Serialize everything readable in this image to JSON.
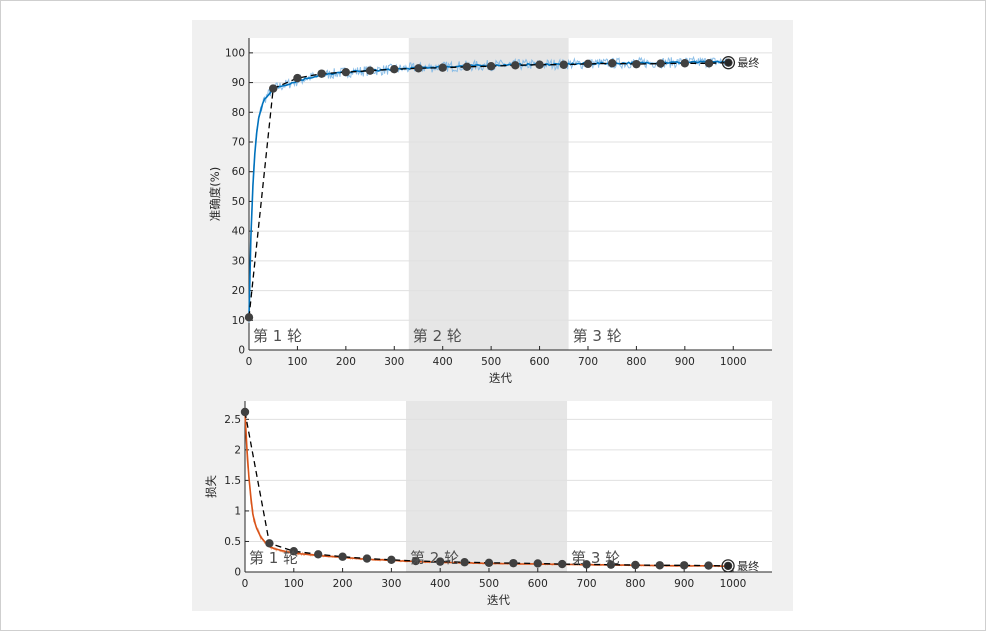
{
  "colors": {
    "accuracy_line": "#0072BD",
    "accuracy_raw": "#7fb8e6",
    "loss_line": "#D95319",
    "loss_raw": "#f0a982",
    "validation_marker": "#404040",
    "epoch_shade": "#e6e6e6",
    "panel_bg": "#f0f0f0",
    "grid": "#e0e0e0"
  },
  "chart_data": [
    {
      "type": "line",
      "ylabel": "准确度(%)",
      "xlabel": "迭代",
      "xlim": [
        0,
        1080
      ],
      "ylim": [
        0,
        105
      ],
      "xticks": [
        "0",
        "100",
        "200",
        "300",
        "400",
        "500",
        "600",
        "700",
        "800",
        "900",
        "1000"
      ],
      "yticks": [
        "0",
        "10",
        "20",
        "30",
        "40",
        "50",
        "60",
        "70",
        "80",
        "90",
        "100"
      ],
      "grid": true,
      "epochs": [
        {
          "label": "第 1 轮",
          "start": 0,
          "end": 330,
          "shaded": false
        },
        {
          "label": "第 2 轮",
          "start": 330,
          "end": 660,
          "shaded": true
        },
        {
          "label": "第 3 轮",
          "start": 660,
          "end": 990,
          "shaded": false
        }
      ],
      "smoothed": {
        "x": [
          0,
          5,
          10,
          15,
          20,
          30,
          40,
          50,
          60,
          80,
          100,
          120,
          150,
          200,
          250,
          300,
          350,
          400,
          450,
          500,
          550,
          600,
          650,
          700,
          750,
          800,
          850,
          900,
          950,
          990
        ],
        "y": [
          11,
          45,
          62,
          72,
          78,
          84,
          86,
          88,
          88.5,
          89.5,
          90.5,
          91.5,
          92.5,
          93.5,
          94,
          94.5,
          95,
          95.3,
          95.6,
          95.8,
          96,
          96.1,
          96.2,
          96.4,
          96.5,
          96.6,
          96.7,
          96.8,
          96.9,
          97
        ]
      },
      "validation": {
        "x": [
          0,
          50,
          100,
          150,
          200,
          250,
          300,
          350,
          400,
          450,
          500,
          550,
          600,
          650,
          700,
          750,
          800,
          850,
          900,
          950,
          990
        ],
        "y": [
          11,
          88,
          91.5,
          93,
          93.5,
          94,
          94.5,
          94.8,
          95,
          95.3,
          95.5,
          95.8,
          96,
          96,
          96.3,
          96.5,
          96.2,
          96.4,
          96.5,
          96.5,
          96.7
        ]
      },
      "final": {
        "label": "最终",
        "x": 990,
        "y": 96.7
      }
    },
    {
      "type": "line",
      "ylabel": "损失",
      "xlabel": "迭代",
      "xlim": [
        0,
        1080
      ],
      "ylim": [
        0,
        2.8
      ],
      "xticks": [
        "0",
        "100",
        "200",
        "300",
        "400",
        "500",
        "600",
        "700",
        "800",
        "900",
        "1000"
      ],
      "yticks": [
        "0",
        "0.5",
        "1",
        "1.5",
        "2",
        "2.5"
      ],
      "grid": true,
      "epochs": [
        {
          "label": "第 1 轮",
          "start": 0,
          "end": 330,
          "shaded": false
        },
        {
          "label": "第 2 轮",
          "start": 330,
          "end": 660,
          "shaded": true
        },
        {
          "label": "第 3 轮",
          "start": 660,
          "end": 990,
          "shaded": false
        }
      ],
      "smoothed": {
        "x": [
          0,
          5,
          10,
          15,
          20,
          30,
          40,
          50,
          60,
          80,
          100,
          150,
          200,
          250,
          300,
          350,
          400,
          450,
          500,
          550,
          600,
          650,
          700,
          750,
          800,
          850,
          900,
          950,
          990
        ],
        "y": [
          2.6,
          1.85,
          1.35,
          1.0,
          0.8,
          0.6,
          0.5,
          0.42,
          0.38,
          0.34,
          0.31,
          0.27,
          0.24,
          0.21,
          0.19,
          0.17,
          0.16,
          0.15,
          0.14,
          0.135,
          0.13,
          0.125,
          0.12,
          0.115,
          0.11,
          0.105,
          0.1,
          0.1,
          0.095
        ]
      },
      "validation": {
        "x": [
          0,
          50,
          100,
          150,
          200,
          250,
          300,
          350,
          400,
          450,
          500,
          550,
          600,
          650,
          700,
          750,
          800,
          850,
          900,
          950,
          990
        ],
        "y": [
          2.62,
          0.47,
          0.34,
          0.29,
          0.25,
          0.22,
          0.2,
          0.18,
          0.17,
          0.16,
          0.15,
          0.145,
          0.14,
          0.13,
          0.125,
          0.12,
          0.115,
          0.11,
          0.11,
          0.105,
          0.1
        ]
      },
      "final": {
        "label": "最终",
        "x": 990,
        "y": 0.1
      }
    }
  ]
}
